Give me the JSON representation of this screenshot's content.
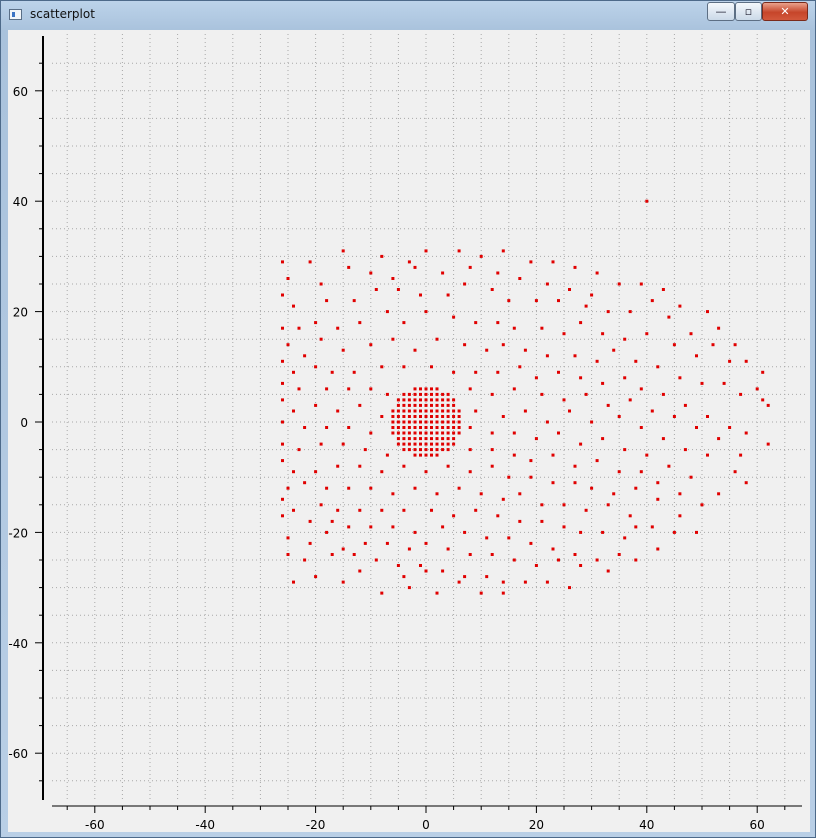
{
  "window": {
    "title": "scatterplot",
    "minimize_glyph": "—",
    "maximize_glyph": "▫",
    "close_glyph": "✕"
  },
  "colors": {
    "point": "#e00000",
    "axis": "#000000",
    "grid": "#a8a8a8",
    "background": "#f0f0f0"
  },
  "chart_data": {
    "type": "scatter",
    "title": "",
    "xlabel": "",
    "ylabel": "",
    "xlim": [
      -70,
      70
    ],
    "ylim": [
      -70,
      70
    ],
    "grid": true,
    "x_ticks": [
      {
        "value": -60,
        "label": "-60"
      },
      {
        "value": -40,
        "label": "-40"
      },
      {
        "value": -20,
        "label": "-20"
      },
      {
        "value": 0,
        "label": "0"
      },
      {
        "value": 20,
        "label": "20"
      },
      {
        "value": 40,
        "label": "40"
      },
      {
        "value": 60,
        "label": "60"
      }
    ],
    "y_ticks": [
      {
        "value": 60,
        "label": "60"
      },
      {
        "value": 40,
        "label": "40"
      },
      {
        "value": 20,
        "label": "20"
      },
      {
        "value": 0,
        "label": "0"
      },
      {
        "value": -20,
        "label": "-20"
      },
      {
        "value": -40,
        "label": "-40"
      },
      {
        "value": -60,
        "label": "-60"
      }
    ],
    "series": [
      {
        "marker_color": "#e00000",
        "points": [
          [
            40,
            40
          ],
          [
            -26,
            29
          ],
          [
            -21,
            29
          ],
          [
            -15,
            31
          ],
          [
            -8,
            30
          ],
          [
            -3,
            29
          ],
          [
            0,
            31
          ],
          [
            6,
            31
          ],
          [
            10,
            30
          ],
          [
            14,
            31
          ],
          [
            19,
            29
          ],
          [
            23,
            29
          ],
          [
            27,
            28
          ],
          [
            31,
            27
          ],
          [
            -25,
            26
          ],
          [
            -19,
            25
          ],
          [
            -14,
            28
          ],
          [
            -10,
            27
          ],
          [
            -6,
            26
          ],
          [
            -2,
            28
          ],
          [
            3,
            27
          ],
          [
            8,
            28
          ],
          [
            13,
            27
          ],
          [
            17,
            26
          ],
          [
            22,
            25
          ],
          [
            26,
            24
          ],
          [
            30,
            23
          ],
          [
            35,
            25
          ],
          [
            39,
            25
          ],
          [
            43,
            24
          ],
          [
            46,
            21
          ],
          [
            51,
            20
          ],
          [
            53,
            17
          ],
          [
            -26,
            23
          ],
          [
            -24,
            21
          ],
          [
            -18,
            22
          ],
          [
            -13,
            22
          ],
          [
            -9,
            24
          ],
          [
            -5,
            24
          ],
          [
            -1,
            23
          ],
          [
            4,
            23
          ],
          [
            7,
            25
          ],
          [
            12,
            24
          ],
          [
            15,
            22
          ],
          [
            20,
            22
          ],
          [
            24,
            22
          ],
          [
            29,
            21
          ],
          [
            33,
            20
          ],
          [
            37,
            20
          ],
          [
            41,
            22
          ],
          [
            44,
            19
          ],
          [
            48,
            16
          ],
          [
            52,
            14
          ],
          [
            56,
            14
          ],
          [
            58,
            11
          ],
          [
            61,
            9
          ],
          [
            -26,
            17
          ],
          [
            -23,
            17
          ],
          [
            -20,
            18
          ],
          [
            -16,
            17
          ],
          [
            -12,
            18
          ],
          [
            -7,
            20
          ],
          [
            -4,
            18
          ],
          [
            0,
            20
          ],
          [
            5,
            19
          ],
          [
            9,
            18
          ],
          [
            13,
            18
          ],
          [
            16,
            17
          ],
          [
            21,
            17
          ],
          [
            25,
            16
          ],
          [
            28,
            18
          ],
          [
            32,
            16
          ],
          [
            36,
            15
          ],
          [
            40,
            16
          ],
          [
            45,
            14
          ],
          [
            49,
            12
          ],
          [
            55,
            11
          ],
          [
            60,
            6
          ],
          [
            62,
            3
          ],
          [
            -25,
            14
          ],
          [
            -22,
            12
          ],
          [
            -19,
            15
          ],
          [
            -15,
            13
          ],
          [
            -10,
            14
          ],
          [
            -6,
            15
          ],
          [
            -2,
            13
          ],
          [
            2,
            15
          ],
          [
            7,
            14
          ],
          [
            11,
            13
          ],
          [
            14,
            14
          ],
          [
            18,
            13
          ],
          [
            22,
            12
          ],
          [
            27,
            12
          ],
          [
            31,
            11
          ],
          [
            34,
            13
          ],
          [
            38,
            11
          ],
          [
            42,
            10
          ],
          [
            46,
            8
          ],
          [
            50,
            7
          ],
          [
            54,
            7
          ],
          [
            57,
            5
          ],
          [
            61,
            4
          ],
          [
            -26,
            11
          ],
          [
            -24,
            9
          ],
          [
            -20,
            10
          ],
          [
            -17,
            9
          ],
          [
            -13,
            9
          ],
          [
            -8,
            10
          ],
          [
            -4,
            10
          ],
          [
            1,
            10
          ],
          [
            5,
            9
          ],
          [
            9,
            9
          ],
          [
            13,
            9
          ],
          [
            17,
            10
          ],
          [
            20,
            8
          ],
          [
            24,
            9
          ],
          [
            28,
            8
          ],
          [
            32,
            7
          ],
          [
            36,
            8
          ],
          [
            39,
            6
          ],
          [
            43,
            5
          ],
          [
            47,
            3
          ],
          [
            51,
            1
          ],
          [
            55,
            -1
          ],
          [
            58,
            -2
          ],
          [
            -26,
            7
          ],
          [
            -23,
            6
          ],
          [
            -18,
            6
          ],
          [
            -14,
            6
          ],
          [
            -10,
            6
          ],
          [
            -7,
            5
          ],
          [
            8,
            6
          ],
          [
            12,
            5
          ],
          [
            16,
            6
          ],
          [
            21,
            5
          ],
          [
            25,
            4
          ],
          [
            29,
            5
          ],
          [
            33,
            3
          ],
          [
            37,
            4
          ],
          [
            41,
            2
          ],
          [
            45,
            1
          ],
          [
            49,
            -1
          ],
          [
            53,
            -3
          ],
          [
            57,
            -6
          ],
          [
            62,
            -4
          ],
          [
            -26,
            4
          ],
          [
            -24,
            2
          ],
          [
            -20,
            3
          ],
          [
            -16,
            2
          ],
          [
            -12,
            3
          ],
          [
            -8,
            1
          ],
          [
            9,
            2
          ],
          [
            14,
            1
          ],
          [
            18,
            2
          ],
          [
            22,
            0
          ],
          [
            26,
            2
          ],
          [
            30,
            0
          ],
          [
            35,
            1
          ],
          [
            39,
            -1
          ],
          [
            43,
            -3
          ],
          [
            47,
            -5
          ],
          [
            51,
            -6
          ],
          [
            56,
            -9
          ],
          [
            -26,
            0
          ],
          [
            -22,
            -1
          ],
          [
            -18,
            -1
          ],
          [
            -14,
            -1
          ],
          [
            -10,
            -2
          ],
          [
            8,
            -1
          ],
          [
            12,
            -2
          ],
          [
            16,
            -2
          ],
          [
            20,
            -3
          ],
          [
            24,
            -2
          ],
          [
            28,
            -4
          ],
          [
            32,
            -3
          ],
          [
            36,
            -5
          ],
          [
            40,
            -6
          ],
          [
            44,
            -8
          ],
          [
            48,
            -10
          ],
          [
            53,
            -13
          ],
          [
            58,
            -11
          ],
          [
            -26,
            -4
          ],
          [
            -23,
            -5
          ],
          [
            -19,
            -4
          ],
          [
            -15,
            -4
          ],
          [
            -11,
            -5
          ],
          [
            -7,
            -6
          ],
          [
            8,
            -5
          ],
          [
            12,
            -5
          ],
          [
            16,
            -6
          ],
          [
            19,
            -7
          ],
          [
            23,
            -6
          ],
          [
            27,
            -8
          ],
          [
            31,
            -7
          ],
          [
            35,
            -9
          ],
          [
            39,
            -9
          ],
          [
            42,
            -11
          ],
          [
            46,
            -13
          ],
          [
            50,
            -15
          ],
          [
            -26,
            -7
          ],
          [
            -24,
            -9
          ],
          [
            -20,
            -9
          ],
          [
            -16,
            -8
          ],
          [
            -12,
            -8
          ],
          [
            -8,
            -9
          ],
          [
            -4,
            -8
          ],
          [
            0,
            -9
          ],
          [
            4,
            -8
          ],
          [
            8,
            -9
          ],
          [
            12,
            -8
          ],
          [
            15,
            -10
          ],
          [
            19,
            -10
          ],
          [
            23,
            -11
          ],
          [
            27,
            -11
          ],
          [
            30,
            -12
          ],
          [
            34,
            -13
          ],
          [
            38,
            -12
          ],
          [
            42,
            -14
          ],
          [
            46,
            -17
          ],
          [
            49,
            -20
          ],
          [
            -25,
            -12
          ],
          [
            -22,
            -11
          ],
          [
            -18,
            -12
          ],
          [
            -14,
            -12
          ],
          [
            -10,
            -12
          ],
          [
            -6,
            -13
          ],
          [
            -2,
            -12
          ],
          [
            2,
            -13
          ],
          [
            6,
            -12
          ],
          [
            10,
            -13
          ],
          [
            14,
            -14
          ],
          [
            17,
            -13
          ],
          [
            21,
            -15
          ],
          [
            25,
            -15
          ],
          [
            29,
            -16
          ],
          [
            33,
            -15
          ],
          [
            37,
            -17
          ],
          [
            41,
            -19
          ],
          [
            45,
            -20
          ],
          [
            -26,
            -14
          ],
          [
            -24,
            -16
          ],
          [
            -19,
            -15
          ],
          [
            -16,
            -16
          ],
          [
            -12,
            -16
          ],
          [
            -8,
            -16
          ],
          [
            -4,
            -16
          ],
          [
            1,
            -16
          ],
          [
            5,
            -17
          ],
          [
            9,
            -16
          ],
          [
            13,
            -17
          ],
          [
            17,
            -18
          ],
          [
            21,
            -18
          ],
          [
            25,
            -19
          ],
          [
            28,
            -20
          ],
          [
            32,
            -20
          ],
          [
            36,
            -21
          ],
          [
            38,
            -19
          ],
          [
            42,
            -23
          ],
          [
            -26,
            -17
          ],
          [
            -21,
            -18
          ],
          [
            -17,
            -18
          ],
          [
            -14,
            -19
          ],
          [
            -10,
            -19
          ],
          [
            -6,
            -19
          ],
          [
            -2,
            -20
          ],
          [
            3,
            -19
          ],
          [
            7,
            -20
          ],
          [
            11,
            -21
          ],
          [
            15,
            -21
          ],
          [
            19,
            -22
          ],
          [
            23,
            -23
          ],
          [
            27,
            -24
          ],
          [
            31,
            -25
          ],
          [
            35,
            -24
          ],
          [
            38,
            -25
          ],
          [
            -25,
            -21
          ],
          [
            -21,
            -22
          ],
          [
            -18,
            -20
          ],
          [
            -15,
            -23
          ],
          [
            -11,
            -22
          ],
          [
            -7,
            -22
          ],
          [
            -3,
            -23
          ],
          [
            0,
            -22
          ],
          [
            4,
            -23
          ],
          [
            8,
            -24
          ],
          [
            12,
            -24
          ],
          [
            16,
            -25
          ],
          [
            20,
            -26
          ],
          [
            24,
            -25
          ],
          [
            28,
            -26
          ],
          [
            33,
            -27
          ],
          [
            -25,
            -24
          ],
          [
            -22,
            -25
          ],
          [
            -17,
            -24
          ],
          [
            -13,
            -24
          ],
          [
            -9,
            -25
          ],
          [
            -5,
            -26
          ],
          [
            -1,
            -26
          ],
          [
            3,
            -27
          ],
          [
            7,
            -28
          ],
          [
            11,
            -28
          ],
          [
            14,
            -29
          ],
          [
            18,
            -29
          ],
          [
            22,
            -29
          ],
          [
            26,
            -30
          ],
          [
            -24,
            -29
          ],
          [
            -20,
            -28
          ],
          [
            -15,
            -29
          ],
          [
            -12,
            -27
          ],
          [
            -8,
            -31
          ],
          [
            -4,
            -28
          ],
          [
            -3,
            -30
          ],
          [
            0,
            -27
          ],
          [
            2,
            -31
          ],
          [
            6,
            -29
          ],
          [
            10,
            -31
          ],
          [
            14,
            -31
          ]
        ],
        "dense_cluster": {
          "x_values": [
            -6,
            -5,
            -4,
            -3,
            -2,
            -1,
            0,
            1,
            2,
            3,
            4,
            5,
            6
          ],
          "y_values": [
            -6,
            -5,
            -4,
            -3,
            -2,
            -1,
            0,
            1,
            2,
            3,
            4,
            5,
            6
          ],
          "radius": 6.5
        }
      }
    ]
  }
}
